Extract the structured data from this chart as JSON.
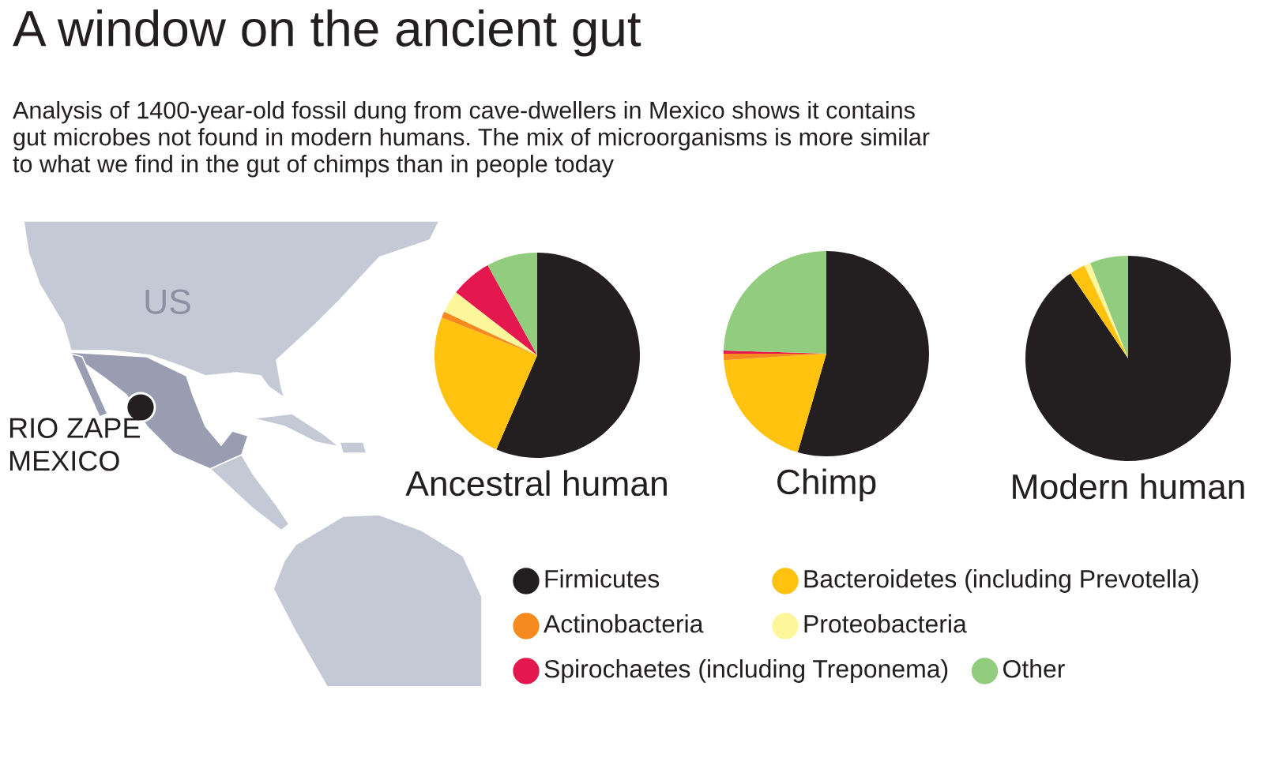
{
  "chart_data": [
    {
      "type": "other",
      "title": "A window on the ancient gut",
      "subtitle": "Analysis of 1400-year-old fossil dung from cave-dwellers in Mexico shows it contains\ngut microbes not found in modern humans. The mix of microorganisms is more similar\nto what we find in the gut of chimps than in people today",
      "annotations": [
        "US",
        "RIO ZAPE\nMEXICO"
      ]
    },
    {
      "type": "pie",
      "xlabel": "Ancestral human",
      "categories": [
        "Firmicutes",
        "Bacteroidetes (including Prevotella)",
        "Actinobacteria",
        "Proteobacteria",
        "Spirochaetes (including Treponema)",
        "Other"
      ],
      "values": [
        56.5,
        24.5,
        1,
        3.5,
        6.5,
        8
      ],
      "colors": [
        "#231f20",
        "#ffc20e",
        "#f58a1f",
        "#fef69a",
        "#e4184e",
        "#92cc7e"
      ],
      "legend": "bottom"
    },
    {
      "type": "pie",
      "xlabel": "Chimp",
      "categories": [
        null,
        null,
        null,
        null,
        null,
        null
      ],
      "values": [
        54.5,
        19.5,
        1,
        null,
        0.5,
        24.5
      ],
      "colors": [
        "#231f20",
        "#ffc20e",
        "#f58a1f",
        "#fef69a",
        "#e4184e",
        "#92cc7e"
      ]
    },
    {
      "type": "pie",
      "xlabel": "Modern human",
      "categories": [
        null,
        null,
        null,
        null,
        null,
        null
      ],
      "values": [
        90.5,
        2.5,
        null,
        1,
        null,
        6
      ],
      "colors": [
        "#231f20",
        "#ffc20e",
        "#f58a1f",
        "#fef69a",
        "#e4184e",
        "#92cc7e"
      ]
    }
  ]
}
